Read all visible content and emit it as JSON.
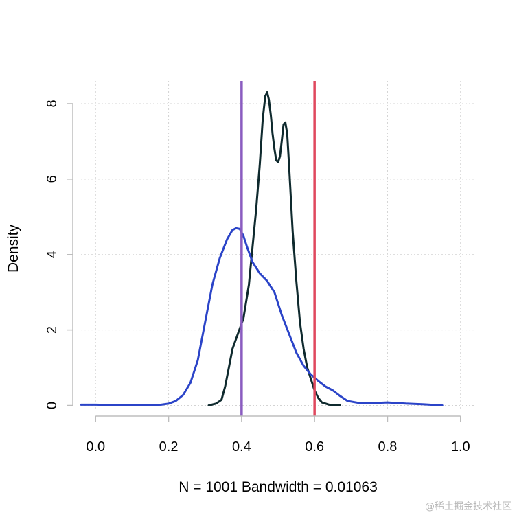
{
  "chart_data": {
    "type": "line",
    "title": "",
    "xlabel": "N = 1001   Bandwidth = 0.01063",
    "ylabel": "Density",
    "xlim": [
      -0.04,
      1.04
    ],
    "ylim": [
      -0.1,
      8.6
    ],
    "xticks": [
      0.0,
      0.2,
      0.4,
      0.6,
      0.8,
      1.0
    ],
    "xtick_labels": [
      "0.0",
      "0.2",
      "0.4",
      "0.6",
      "0.8",
      "1.0"
    ],
    "yticks": [
      0,
      2,
      4,
      6,
      8
    ],
    "ytick_labels": [
      "0",
      "2",
      "4",
      "6",
      "8"
    ],
    "grid": true,
    "series": [
      {
        "color": "#0f2a2e",
        "x": [
          0.31,
          0.33,
          0.345,
          0.355,
          0.365,
          0.375,
          0.39,
          0.405,
          0.42,
          0.43,
          0.44,
          0.45,
          0.458,
          0.465,
          0.47,
          0.475,
          0.48,
          0.485,
          0.49,
          0.495,
          0.5,
          0.505,
          0.51,
          0.515,
          0.52,
          0.525,
          0.53,
          0.535,
          0.54,
          0.55,
          0.56,
          0.57,
          0.58,
          0.59,
          0.6,
          0.61,
          0.62,
          0.64,
          0.67
        ],
        "y": [
          0.0,
          0.05,
          0.15,
          0.5,
          1.0,
          1.5,
          1.9,
          2.3,
          3.2,
          4.2,
          5.2,
          6.4,
          7.6,
          8.2,
          8.3,
          8.1,
          7.7,
          7.2,
          6.8,
          6.5,
          6.45,
          6.6,
          7.0,
          7.45,
          7.5,
          7.2,
          6.4,
          5.5,
          4.6,
          3.3,
          2.2,
          1.5,
          1.0,
          0.7,
          0.4,
          0.2,
          0.08,
          0.02,
          0.0
        ]
      },
      {
        "color": "#2b44c8",
        "x": [
          -0.04,
          0.0,
          0.05,
          0.1,
          0.15,
          0.18,
          0.2,
          0.22,
          0.24,
          0.26,
          0.28,
          0.3,
          0.32,
          0.34,
          0.36,
          0.375,
          0.385,
          0.395,
          0.405,
          0.415,
          0.43,
          0.45,
          0.47,
          0.49,
          0.51,
          0.53,
          0.55,
          0.57,
          0.59,
          0.61,
          0.63,
          0.65,
          0.67,
          0.69,
          0.72,
          0.75,
          0.8,
          0.85,
          0.9,
          0.95
        ],
        "y": [
          0.02,
          0.02,
          0.01,
          0.01,
          0.01,
          0.02,
          0.05,
          0.12,
          0.28,
          0.6,
          1.2,
          2.2,
          3.2,
          3.9,
          4.4,
          4.65,
          4.7,
          4.68,
          4.5,
          4.2,
          3.8,
          3.5,
          3.3,
          3.0,
          2.4,
          1.9,
          1.4,
          1.05,
          0.82,
          0.65,
          0.5,
          0.4,
          0.25,
          0.12,
          0.07,
          0.06,
          0.08,
          0.05,
          0.03,
          0.0
        ]
      }
    ],
    "vlines": [
      {
        "x": 0.4,
        "color": "#8a5cc0"
      },
      {
        "x": 0.6,
        "color": "#e0485e"
      }
    ]
  },
  "watermark": "@稀土掘金技术社区"
}
